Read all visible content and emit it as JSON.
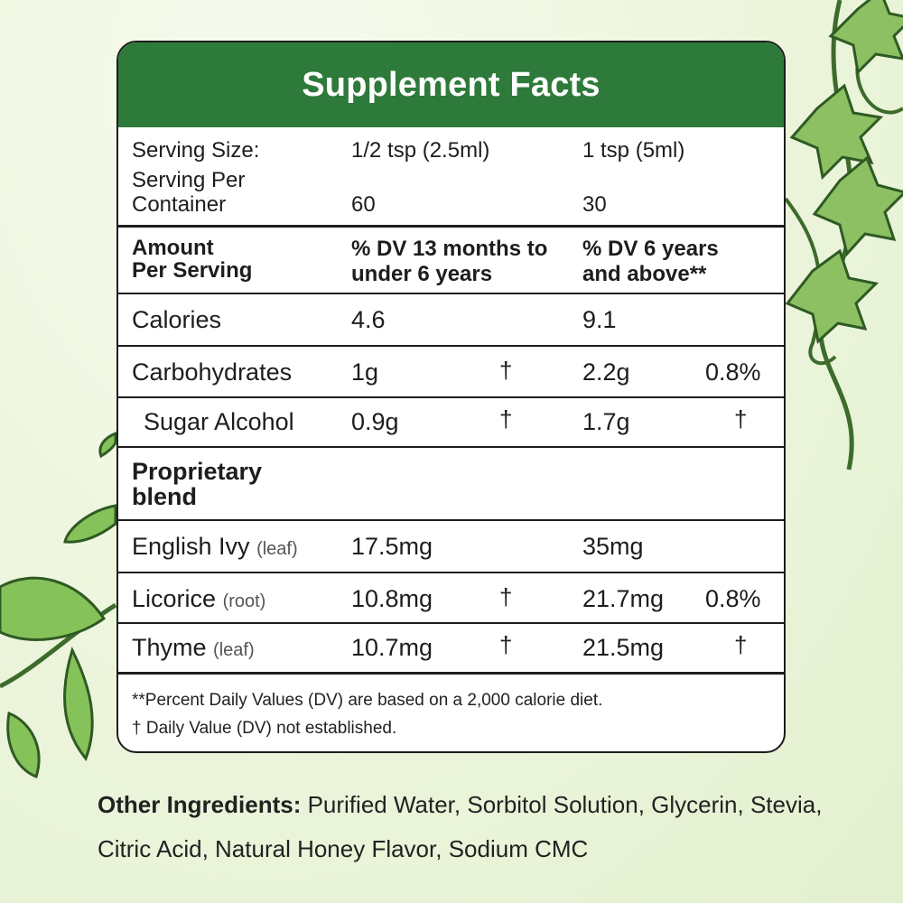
{
  "header": {
    "title": "Supplement Facts"
  },
  "serving": {
    "size_label": "Serving Size:",
    "size_child": "1/2 tsp (2.5ml)",
    "size_adult": "1 tsp (5ml)",
    "per_container_line1": "Serving Per",
    "per_container_line2": "Container",
    "per_container_child": "60",
    "per_container_adult": "30"
  },
  "columns": {
    "amount_line1": "Amount",
    "amount_line2": "Per Serving",
    "child_line1": "% DV 13 months to",
    "child_line2": "under 6 years",
    "adult_line1": "% DV 6 years",
    "adult_line2": "and above**"
  },
  "rows": [
    {
      "name": "Calories",
      "note": "",
      "child_amount": "4.6",
      "child_dv": "",
      "adult_amount": "9.1",
      "adult_dv": ""
    },
    {
      "name": "Carbohydrates",
      "note": "",
      "child_amount": "1g",
      "child_dv": "†",
      "adult_amount": "2.2g",
      "adult_dv": "0.8%"
    },
    {
      "name": "Sugar Alcohol",
      "note": "",
      "child_amount": "0.9g",
      "child_dv": "†",
      "adult_amount": "1.7g",
      "adult_dv": "†"
    }
  ],
  "blend": {
    "line1": "Proprietary",
    "line2": "blend"
  },
  "blend_rows": [
    {
      "name": "English Ivy",
      "note": "(leaf)",
      "child_amount": "17.5mg",
      "child_dv": "",
      "adult_amount": "35mg",
      "adult_dv": ""
    },
    {
      "name": "Licorice",
      "note": "(root)",
      "child_amount": "10.8mg",
      "child_dv": "†",
      "adult_amount": "21.7mg",
      "adult_dv": "0.8%"
    },
    {
      "name": "Thyme",
      "note": "(leaf)",
      "child_amount": "10.7mg",
      "child_dv": "†",
      "adult_amount": "21.5mg",
      "adult_dv": "†"
    }
  ],
  "footnotes": {
    "line1": "**Percent Daily Values (DV) are based on a 2,000 calorie diet.",
    "line2": "† Daily Value (DV) not established."
  },
  "other_ingredients": {
    "label": "Other Ingredients:",
    "text": " Purified Water, Sorbitol Solution, Glycerin, Stevia, Citric Acid, Natural Honey Flavor, Sodium CMC"
  },
  "colors": {
    "header_green": "#2e7a3a",
    "leaf_green": "#7fb55a",
    "background": "#eef6df"
  }
}
